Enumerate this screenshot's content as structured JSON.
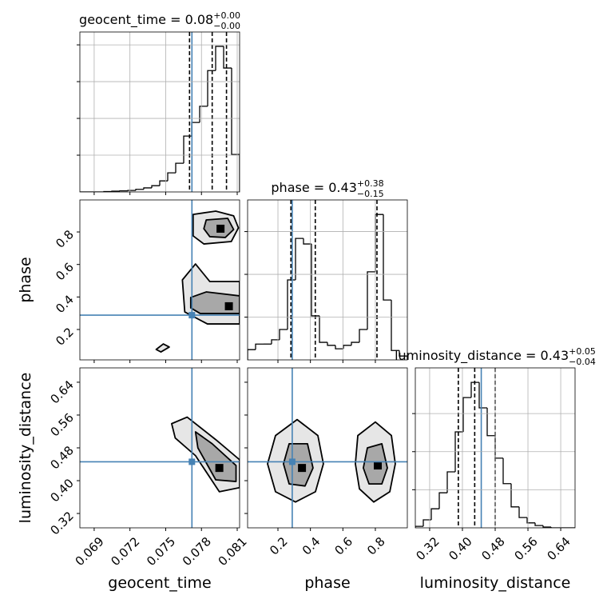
{
  "chart_data": [
    {
      "type": "histogram",
      "title": "geocent_time = 0.08",
      "title_sup": "+0.00",
      "title_sub": "−0.00",
      "bins": [
        0.0678,
        0.06847,
        0.06914,
        0.06981,
        0.07048,
        0.07115,
        0.07182,
        0.07249,
        0.07316,
        0.07383,
        0.0745,
        0.07517,
        0.07584,
        0.07651,
        0.07718,
        0.07785,
        0.07852,
        0.07919,
        0.07986,
        0.08053,
        0.0812
      ],
      "counts": [
        0,
        0,
        0,
        0.01,
        0.02,
        0.03,
        0.04,
        0.07,
        0.11,
        0.17,
        0.3,
        0.52,
        0.78,
        1.52,
        1.89,
        2.33,
        3.3,
        3.96,
        3.37,
        1.02
      ],
      "quantiles": [
        0.077,
        0.0789,
        0.0801
      ],
      "truth": 0.0772,
      "color": "#000000",
      "truth_color": "#4682b4",
      "xlim": [
        0.0678,
        0.0812
      ],
      "xticks": [
        0.069,
        0.072,
        0.075,
        0.078,
        0.081
      ],
      "ylim": [
        0,
        4.35
      ],
      "yticks": [
        1,
        2,
        3,
        4
      ],
      "grid": true,
      "show_xticklabels": false,
      "show_yticklabels": false
    },
    {
      "type": "contour",
      "ylabel": "phase",
      "contours": [
        {
          "fill": "#e6e6e6",
          "x": [
            0.0773,
            0.0792,
            0.0807,
            0.0811,
            0.0805,
            0.0782,
            0.0773
          ],
          "y": [
            0.908,
            0.928,
            0.899,
            0.825,
            0.741,
            0.726,
            0.776
          ]
        },
        {
          "fill": "#a8a8a8",
          "x": [
            0.0784,
            0.0802,
            0.0807,
            0.08,
            0.0787,
            0.0782
          ],
          "y": [
            0.874,
            0.884,
            0.815,
            0.766,
            0.771,
            0.82
          ]
        },
        {
          "fill": "#e6e6e6",
          "x": [
            0.0764,
            0.0775,
            0.0787,
            0.0812,
            0.0812,
            0.0785,
            0.0766
          ],
          "y": [
            0.505,
            0.603,
            0.495,
            0.495,
            0.234,
            0.234,
            0.308
          ]
        },
        {
          "fill": "#a8a8a8",
          "x": [
            0.0771,
            0.0784,
            0.0812,
            0.0812,
            0.0779,
            0.0771
          ],
          "y": [
            0.397,
            0.431,
            0.407,
            0.298,
            0.298,
            0.333
          ]
        },
        {
          "fill": "#e6e6e6",
          "x": [
            0.0742,
            0.0748,
            0.0753,
            0.0746
          ],
          "y": [
            0.077,
            0.111,
            0.092,
            0.062
          ]
        }
      ],
      "peaks_x": [
        0.0796,
        0.0803
      ],
      "peaks_y": [
        0.82,
        0.343
      ],
      "peak_color": "#000000",
      "truth_x": 0.0772,
      "truth_y": 0.288,
      "truth_color": "#4682b4",
      "xlim": [
        0.0678,
        0.0812
      ],
      "xticks": [
        0.069,
        0.072,
        0.075,
        0.078,
        0.081
      ],
      "ylim": [
        0.013,
        0.997
      ],
      "yticks": [
        0.2,
        0.4,
        0.6,
        0.8
      ],
      "grid": false,
      "show_xticklabels": false,
      "show_yticklabels": true
    },
    {
      "type": "histogram",
      "title": "phase = 0.43",
      "title_sup": "+0.38",
      "title_sub": "−0.15",
      "bins": [
        0.013,
        0.0622,
        0.1114,
        0.1606,
        0.2098,
        0.259,
        0.3082,
        0.3574,
        0.4066,
        0.4558,
        0.505,
        0.5542,
        0.6034,
        0.6526,
        0.7018,
        0.751,
        0.8002,
        0.8494,
        0.8986,
        0.9478,
        0.997
      ],
      "counts": [
        0.24,
        0.37,
        0.37,
        0.47,
        0.71,
        1.87,
        2.84,
        2.71,
        1.03,
        0.41,
        0.34,
        0.26,
        0.34,
        0.41,
        0.71,
        2.06,
        3.4,
        1.4,
        0.22,
        0.09
      ],
      "quantiles": [
        0.28,
        0.43,
        0.81
      ],
      "truth": 0.288,
      "color": "#000000",
      "truth_color": "#4682b4",
      "xlim": [
        0.013,
        0.997
      ],
      "xticks": [
        0.2,
        0.4,
        0.6,
        0.8
      ],
      "ylim": [
        0,
        3.74
      ],
      "yticks": [
        1,
        2,
        3
      ],
      "grid": true,
      "show_xticklabels": false,
      "show_yticklabels": false
    },
    {
      "type": "contour",
      "xlabel": "geocent_time",
      "ylabel": "luminosity_distance",
      "contours": [
        {
          "fill": "#e6e6e6",
          "x": [
            0.0755,
            0.0768,
            0.0792,
            0.0812,
            0.0812,
            0.0795,
            0.0775,
            0.0758
          ],
          "y": [
            0.539,
            0.555,
            0.5,
            0.451,
            0.383,
            0.373,
            0.461,
            0.504
          ]
        },
        {
          "fill": "#a8a8a8",
          "x": [
            0.0775,
            0.0789,
            0.0809,
            0.0809,
            0.0792,
            0.0777
          ],
          "y": [
            0.519,
            0.49,
            0.437,
            0.398,
            0.402,
            0.48
          ]
        }
      ],
      "peaks_x": [
        0.0795
      ],
      "peaks_y": [
        0.431
      ],
      "peak_color": "#000000",
      "truth_x": 0.0772,
      "truth_y": 0.446,
      "truth_color": "#4682b4",
      "xlim": [
        0.0678,
        0.0812
      ],
      "xticks": [
        0.069,
        0.072,
        0.075,
        0.078,
        0.081
      ],
      "ylim": [
        0.285,
        0.675
      ],
      "yticks": [
        0.32,
        {
          "value": 0.4,
          "label": "0.40"
        },
        0.48,
        0.56,
        0.64
      ],
      "grid": false,
      "show_xticklabels": true,
      "show_yticklabels": true
    },
    {
      "type": "contour",
      "xlabel": "phase",
      "contours": [
        {
          "fill": "#e6e6e6",
          "x": [
            0.185,
            0.318,
            0.446,
            0.48,
            0.431,
            0.308,
            0.185,
            0.136
          ],
          "y": [
            0.51,
            0.549,
            0.51,
            0.441,
            0.373,
            0.348,
            0.373,
            0.441
          ]
        },
        {
          "fill": "#a8a8a8",
          "x": [
            0.269,
            0.382,
            0.416,
            0.367,
            0.269,
            0.234
          ],
          "y": [
            0.49,
            0.49,
            0.431,
            0.387,
            0.392,
            0.441
          ]
        },
        {
          "fill": "#e6e6e6",
          "x": [
            0.692,
            0.8,
            0.899,
            0.923,
            0.889,
            0.79,
            0.702,
            0.677
          ],
          "y": [
            0.51,
            0.543,
            0.51,
            0.441,
            0.373,
            0.348,
            0.38,
            0.441
          ]
        },
        {
          "fill": "#a8a8a8",
          "x": [
            0.751,
            0.84,
            0.874,
            0.84,
            0.761,
            0.726
          ],
          "y": [
            0.48,
            0.49,
            0.431,
            0.392,
            0.392,
            0.431
          ]
        }
      ],
      "peaks_x": [
        0.348,
        0.815
      ],
      "peaks_y": [
        0.431,
        0.437
      ],
      "peak_color": "#000000",
      "truth_x": 0.288,
      "truth_y": 0.446,
      "truth_color": "#4682b4",
      "xlim": [
        0.013,
        0.997
      ],
      "xticks": [
        0.2,
        0.4,
        0.6,
        0.8
      ],
      "ylim": [
        0.285,
        0.675
      ],
      "yticks": [
        0.32,
        {
          "value": 0.4,
          "label": "0.40"
        },
        0.48,
        0.56,
        0.64
      ],
      "grid": false,
      "show_xticklabels": true,
      "show_yticklabels": false
    },
    {
      "type": "histogram",
      "title": "luminosity_distance = 0.43",
      "title_sup": "+0.05",
      "title_sub": "−0.04",
      "xlabel": "luminosity_distance",
      "bins": [
        0.285,
        0.3045,
        0.324,
        0.3435,
        0.363,
        0.3825,
        0.402,
        0.4215,
        0.441,
        0.4605,
        0.48,
        0.4995,
        0.519,
        0.5385,
        0.558,
        0.5775,
        0.597,
        0.6165,
        0.636,
        0.6555,
        0.675
      ],
      "counts": [
        0.04,
        0.21,
        0.5,
        0.92,
        1.47,
        2.52,
        3.42,
        3.82,
        3.15,
        2.42,
        1.83,
        1.16,
        0.55,
        0.27,
        0.13,
        0.06,
        0.02,
        0,
        0,
        0
      ],
      "quantiles": [
        0.39,
        0.43,
        0.48
      ],
      "truth": 0.446,
      "color": "#000000",
      "truth_color": "#4682b4",
      "xlim": [
        0.285,
        0.675
      ],
      "xticks": [
        0.32,
        {
          "value": 0.4,
          "label": "0.40"
        },
        0.48,
        0.56,
        0.64
      ],
      "ylim": [
        0,
        4.2
      ],
      "yticks": [
        1,
        2,
        3
      ],
      "grid": true,
      "show_xticklabels": true,
      "show_yticklabels": false
    }
  ]
}
